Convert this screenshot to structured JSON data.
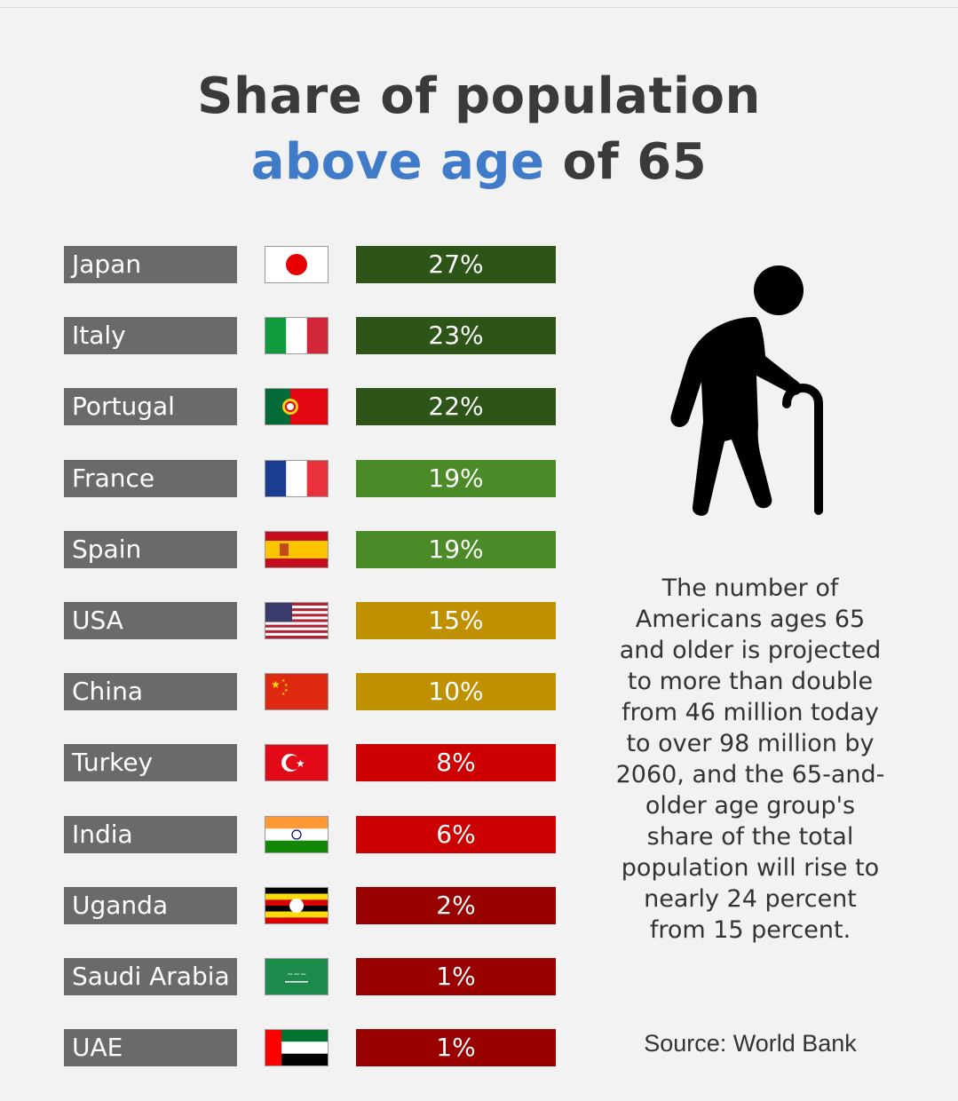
{
  "title": {
    "line1": "Share of population",
    "line2_highlight": "above age",
    "line2_rest": "of 65"
  },
  "chart_data": {
    "type": "table",
    "unit": "%",
    "rows": [
      {
        "country": "Japan",
        "value": 27,
        "label": "27%",
        "color": "#2d5517",
        "flag": "flag-japan"
      },
      {
        "country": "Italy",
        "value": 23,
        "label": "23%",
        "color": "#2d5517",
        "flag": "flag-italy"
      },
      {
        "country": "Portugal",
        "value": 22,
        "label": "22%",
        "color": "#2d5517",
        "flag": "flag-portugal"
      },
      {
        "country": "France",
        "value": 19,
        "label": "19%",
        "color": "#4a8a27",
        "flag": "flag-france"
      },
      {
        "country": "Spain",
        "value": 19,
        "label": "19%",
        "color": "#4a8a27",
        "flag": "flag-spain"
      },
      {
        "country": "USA",
        "value": 15,
        "label": "15%",
        "color": "#bf9000",
        "flag": "flag-usa"
      },
      {
        "country": "China",
        "value": 10,
        "label": "10%",
        "color": "#bf9000",
        "flag": "flag-china"
      },
      {
        "country": "Turkey",
        "value": 8,
        "label": "8%",
        "color": "#cc0000",
        "flag": "flag-turkey"
      },
      {
        "country": "India",
        "value": 6,
        "label": "6%",
        "color": "#cc0000",
        "flag": "flag-india"
      },
      {
        "country": "Uganda",
        "value": 2,
        "label": "2%",
        "color": "#990000",
        "flag": "flag-uganda"
      },
      {
        "country": "Saudi Arabia",
        "value": 1,
        "label": "1%",
        "color": "#990000",
        "flag": "flag-saudi-arabia"
      },
      {
        "country": "UAE",
        "value": 1,
        "label": "1%",
        "color": "#990000",
        "flag": "flag-uae"
      }
    ]
  },
  "description": "The number of Americans ages 65 and older is projected to more than double from 46 million today to over 98 million by 2060, and the 65-and-older age group's share of the total population will rise to nearly 24 percent from 15 percent.",
  "source": "Source: World Bank",
  "icon": "elderly-person-with-cane-icon",
  "colors": {
    "background": "#f2f2f2",
    "name_box": "#6a6a6a",
    "title_text": "#3a3a3a",
    "title_highlight": "#3f7bc8"
  }
}
